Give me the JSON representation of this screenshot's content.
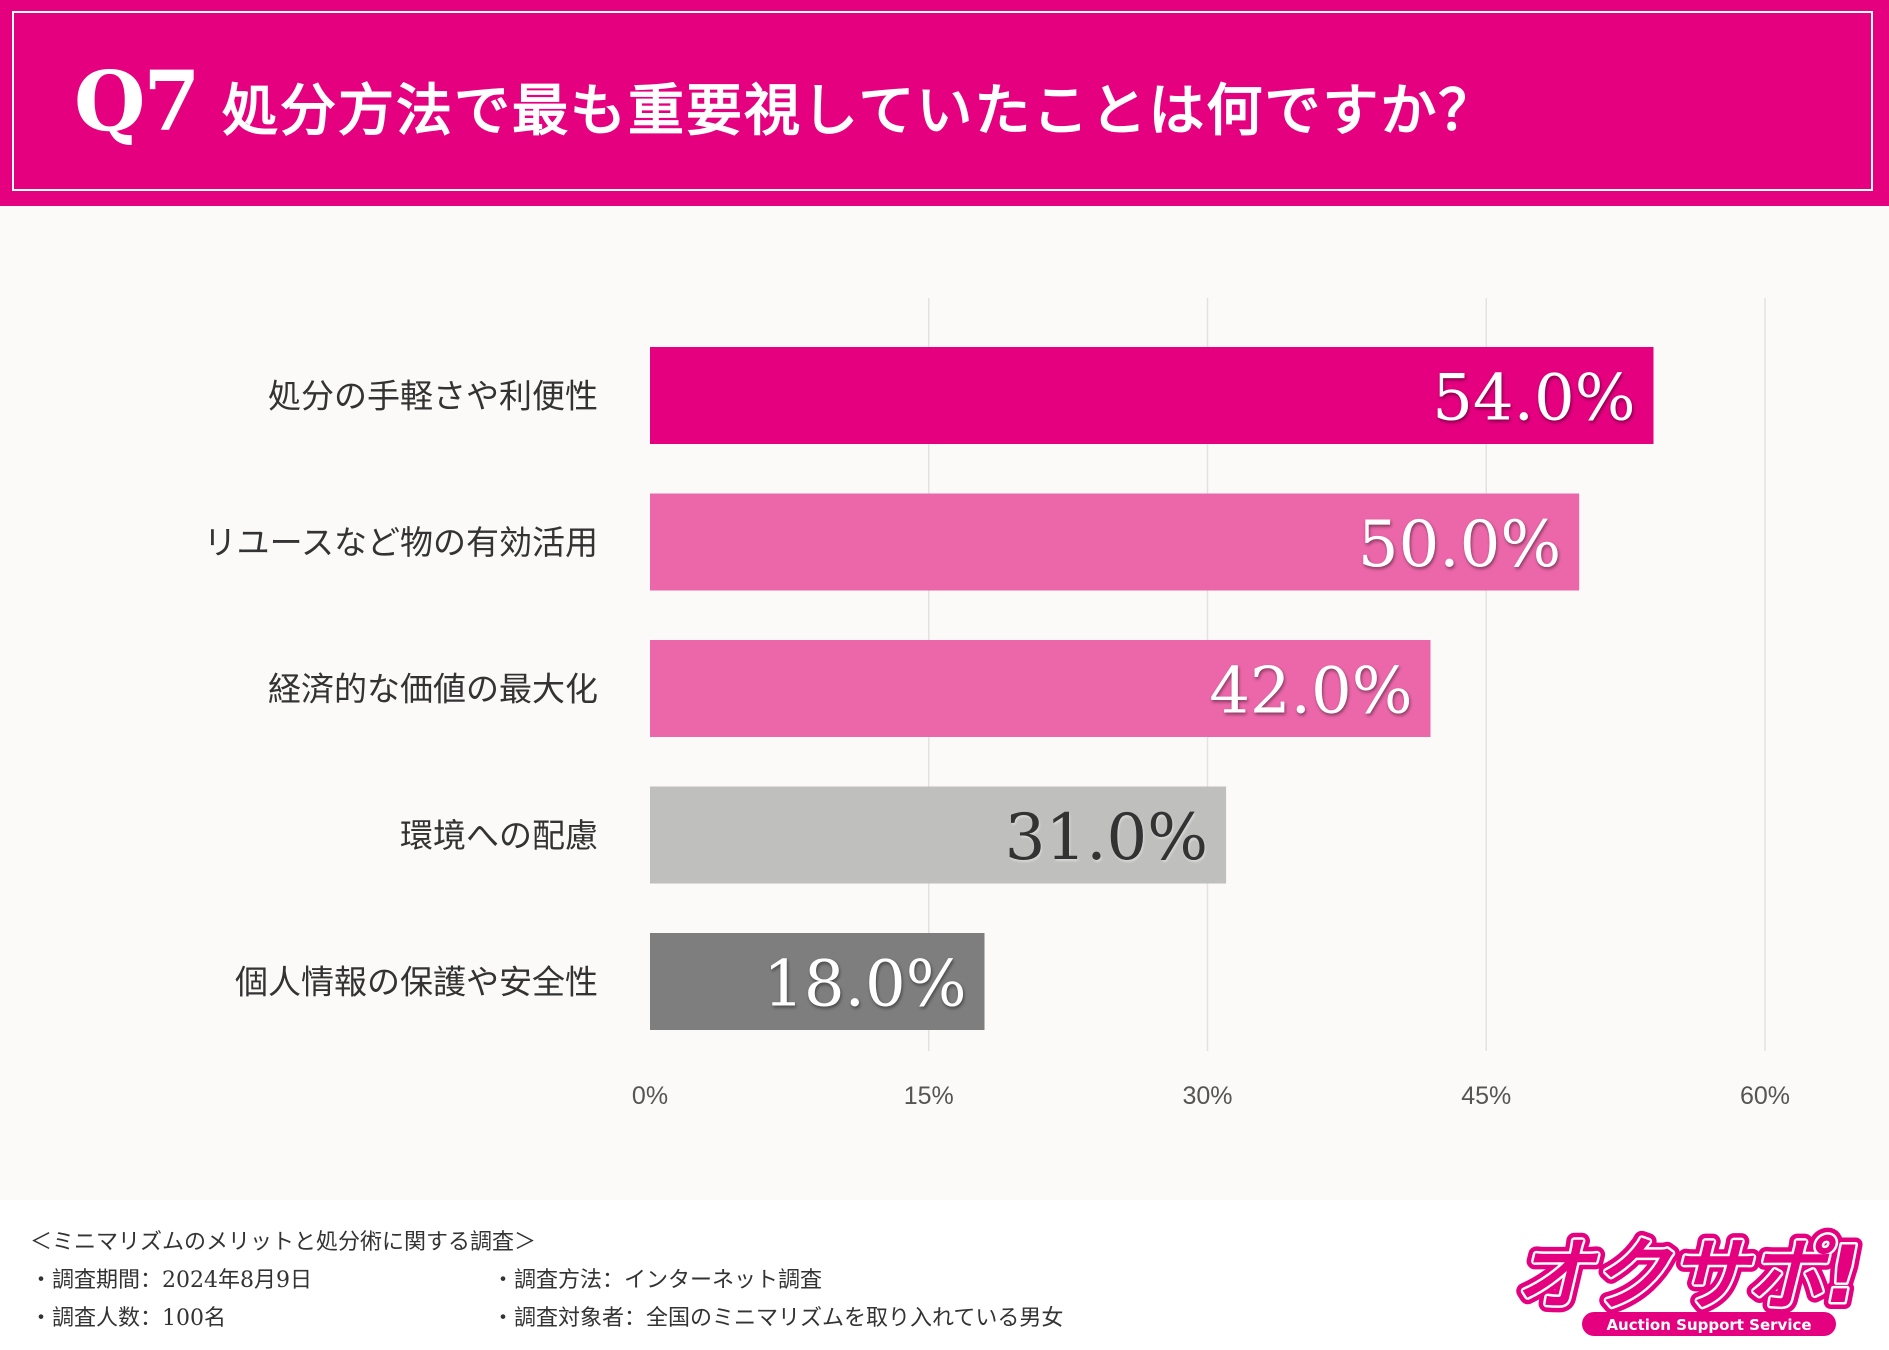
{
  "header": {
    "q_number": "Q7",
    "question": "処分方法で最も重要視していたことは何ですか？"
  },
  "chart_data": {
    "type": "bar",
    "orientation": "horizontal",
    "categories": [
      "処分の手軽さや利便性",
      "リユースなど物の有効活用",
      "経済的な価値の最大化",
      "環境への配慮",
      "個人情報の保護や安全性"
    ],
    "values": [
      54.0,
      50.0,
      42.0,
      31.0,
      18.0
    ],
    "value_labels": [
      "54.0%",
      "50.0%",
      "42.0%",
      "31.0%",
      "18.0%"
    ],
    "bar_colors": [
      "#e4007f",
      "#eb67a9",
      "#eb67a9",
      "#bfbfbe",
      "#7e7e7e"
    ],
    "label_colors": [
      "#ffffff",
      "#ffffff",
      "#ffffff",
      "#333333",
      "#ffffff"
    ],
    "xlim": [
      0,
      60
    ],
    "xticks": [
      0,
      15,
      30,
      45,
      60
    ],
    "xtick_labels": [
      "0%",
      "15%",
      "30%",
      "45%",
      "60%"
    ],
    "grid": true,
    "title": "",
    "xlabel": "",
    "ylabel": ""
  },
  "footer": {
    "survey_title": "＜ミニマリズムのメリットと処分術に関する調査＞",
    "period": "・調査期間：2024年8月9日",
    "method": "・調査方法：インターネット調査",
    "count": "・調査人数：100名",
    "target": "・調査対象者：全国のミニマリズムを取り入れている男女"
  },
  "logo": {
    "text": "オクサポ!",
    "tagline": "Auction Support Service",
    "color": "#e4007f"
  }
}
